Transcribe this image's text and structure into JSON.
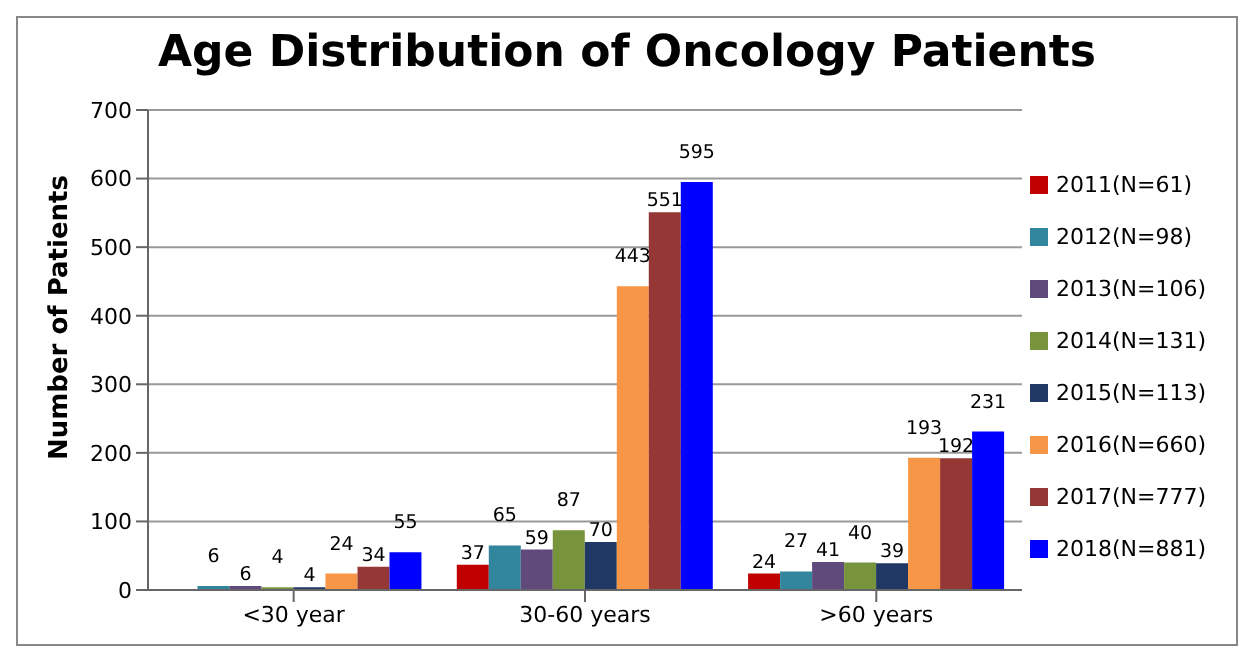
{
  "chart_data": {
    "type": "bar",
    "title": "Age Distribution of Oncology Patients",
    "ylabel": "Number of Patients",
    "categories": [
      "<30 year",
      "30-60 years",
      ">60 years"
    ],
    "series": [
      {
        "name": "2011(N=61)",
        "color": "#c00000",
        "values": [
          null,
          37,
          24
        ]
      },
      {
        "name": "2012(N=98)",
        "color": "#31859c",
        "values": [
          6,
          65,
          27
        ]
      },
      {
        "name": "2013(N=106)",
        "color": "#604a7b",
        "values": [
          6,
          59,
          41
        ]
      },
      {
        "name": "2014(N=131)",
        "color": "#77933c",
        "values": [
          4,
          87,
          40
        ]
      },
      {
        "name": "2015(N=113)",
        "color": "#1f3864",
        "values": [
          4,
          70,
          39
        ]
      },
      {
        "name": "2016(N=660)",
        "color": "#f79646",
        "values": [
          24,
          443,
          193
        ]
      },
      {
        "name": "2017(N=777)",
        "color": "#953735",
        "values": [
          34,
          551,
          192
        ]
      },
      {
        "name": "2018(N=881)",
        "color": "#0000ff",
        "values": [
          55,
          595,
          231
        ]
      }
    ],
    "ylim": [
      0,
      700
    ],
    "yticks": [
      0,
      100,
      200,
      300,
      400,
      500,
      600,
      700
    ],
    "grid": "y",
    "legend": "right",
    "data_labels": true
  }
}
